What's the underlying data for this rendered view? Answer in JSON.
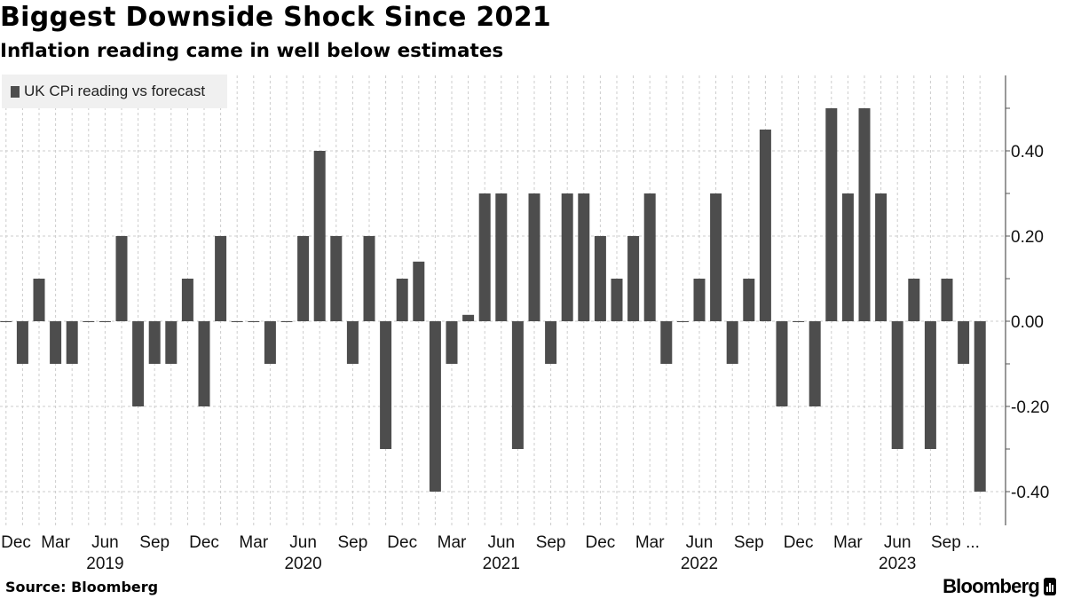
{
  "header": {
    "title": "Biggest Downside Shock Since 2021",
    "subtitle": "Inflation reading came in well below estimates"
  },
  "footer": {
    "source": "Source: Bloomberg",
    "logo": "Bloomberg"
  },
  "colors": {
    "bar": "#4d4d4d",
    "grid": "#cccccc",
    "legend_bg": "#f0f0f0"
  },
  "chart_data": {
    "type": "bar",
    "title": "Biggest Downside Shock Since 2021",
    "subtitle": "Inflation reading came in well below estimates",
    "legend": {
      "position": "top-left",
      "entries": [
        "UK CPi reading vs forecast"
      ]
    },
    "series": [
      {
        "name": "UK CPi reading vs forecast",
        "values": [
          0,
          -0.1,
          0.1,
          -0.1,
          -0.1,
          0,
          0,
          0.2,
          -0.2,
          -0.1,
          -0.1,
          0.1,
          -0.2,
          0.2,
          0,
          0,
          -0.1,
          0,
          0.2,
          0.4,
          0.2,
          -0.1,
          0.2,
          -0.3,
          0.1,
          0.14,
          -0.4,
          -0.1,
          0.015,
          0.3,
          0.3,
          -0.3,
          0.3,
          -0.1,
          0.3,
          0.3,
          0.2,
          0.1,
          0.2,
          0.3,
          -0.1,
          0,
          0.1,
          0.3,
          -0.1,
          0.1,
          0.45,
          -0.2,
          0,
          -0.2,
          0.5,
          0.3,
          0.5,
          0.3,
          -0.3,
          0.1,
          -0.3,
          0.1,
          -0.1,
          -0.4
        ]
      }
    ],
    "categories": [
      "Dec 2018",
      "Jan 2019",
      "Feb 2019",
      "Mar 2019",
      "Apr 2019",
      "May 2019",
      "Jun 2019",
      "Jul 2019",
      "Aug 2019",
      "Sep 2019",
      "Oct 2019",
      "Nov 2019",
      "Dec 2019",
      "Jan 2020",
      "Feb 2020",
      "Mar 2020",
      "Apr 2020",
      "May 2020",
      "Jun 2020",
      "Jul 2020",
      "Aug 2020",
      "Sep 2020",
      "Oct 2020",
      "Nov 2020",
      "Dec 2020",
      "Jan 2021",
      "Feb 2021",
      "Mar 2021",
      "Apr 2021",
      "May 2021",
      "Jun 2021",
      "Jul 2021",
      "Aug 2021",
      "Sep 2021",
      "Oct 2021",
      "Nov 2021",
      "Dec 2021",
      "Jan 2022",
      "Feb 2022",
      "Mar 2022",
      "Apr 2022",
      "May 2022",
      "Jun 2022",
      "Jul 2022",
      "Aug 2022",
      "Sep 2022",
      "Oct 2022",
      "Nov 2022",
      "Dec 2022",
      "Jan 2023",
      "Feb 2023",
      "Mar 2023",
      "Apr 2023",
      "May 2023",
      "Jun 2023",
      "Jul 2023",
      "Aug 2023",
      "Sep 2023",
      "Oct 2023",
      "Nov 2023"
    ],
    "x_tick_labels": [
      {
        "category": "Dec 2018",
        "label": "Dec"
      },
      {
        "category": "Mar 2019",
        "label": "Mar"
      },
      {
        "category": "Jun 2019",
        "label": "Jun"
      },
      {
        "category": "Sep 2019",
        "label": "Sep"
      },
      {
        "category": "Dec 2019",
        "label": "Dec"
      },
      {
        "category": "Mar 2020",
        "label": "Mar"
      },
      {
        "category": "Jun 2020",
        "label": "Jun"
      },
      {
        "category": "Sep 2020",
        "label": "Sep"
      },
      {
        "category": "Dec 2020",
        "label": "Dec"
      },
      {
        "category": "Mar 2021",
        "label": "Mar"
      },
      {
        "category": "Jun 2021",
        "label": "Jun"
      },
      {
        "category": "Sep 2021",
        "label": "Sep"
      },
      {
        "category": "Dec 2021",
        "label": "Dec"
      },
      {
        "category": "Mar 2022",
        "label": "Mar"
      },
      {
        "category": "Jun 2022",
        "label": "Jun"
      },
      {
        "category": "Sep 2022",
        "label": "Sep"
      },
      {
        "category": "Dec 2022",
        "label": "Dec"
      },
      {
        "category": "Mar 2023",
        "label": "Mar"
      },
      {
        "category": "Jun 2023",
        "label": "Jun"
      },
      {
        "category": "Sep 2023",
        "label": "Sep ..."
      }
    ],
    "x_year_labels": [
      {
        "category": "Jun 2019",
        "label": "2019"
      },
      {
        "category": "Jun 2020",
        "label": "2020"
      },
      {
        "category": "Jun 2021",
        "label": "2021"
      },
      {
        "category": "Jun 2022",
        "label": "2022"
      },
      {
        "category": "Jun 2023",
        "label": "2023"
      }
    ],
    "y_ticks": [
      "0.40",
      "0.20",
      "0.00",
      "-0.20",
      "-0.40"
    ],
    "y_tick_values": [
      0.4,
      0.2,
      0,
      -0.2,
      -0.4
    ],
    "ylim": [
      -0.48,
      0.58
    ],
    "y_axis_position": "right",
    "grid": true,
    "xlabel": "",
    "ylabel": ""
  }
}
